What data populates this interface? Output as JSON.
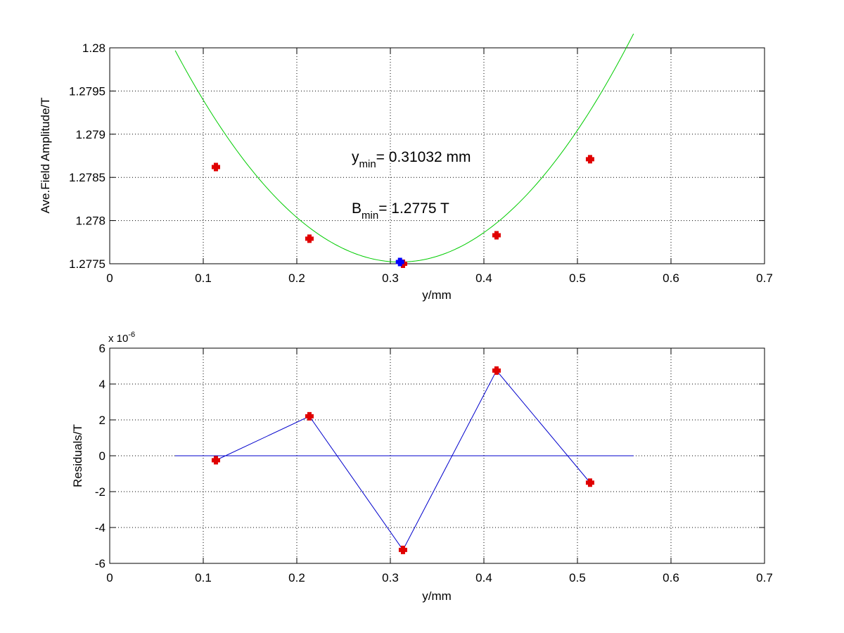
{
  "colors": {
    "fit_curve": "#00cc00",
    "measured_marker": "#e00000",
    "minimum_marker": "#0000ff",
    "residual_line": "#0000cc",
    "zero_line": "#0000cc",
    "grid": "#000000",
    "axes": "#000000"
  },
  "chart_data": [
    {
      "type": "scatter",
      "xlabel": "y/mm",
      "ylabel": "Ave.Field Amplitude/T",
      "xlim": [
        0,
        0.7
      ],
      "ylim": [
        1.2775,
        1.28
      ],
      "xticks": [
        "0",
        "0.1",
        "0.2",
        "0.3",
        "0.4",
        "0.5",
        "0.6",
        "0.7"
      ],
      "yticks": [
        "1.2775",
        "1.278",
        "1.2785",
        "1.279",
        "1.2795",
        "1.28"
      ],
      "grid": true,
      "series": [
        {
          "kind": "measured",
          "x": [
            0.1135,
            0.2135,
            0.3135,
            0.4135,
            0.5135
          ],
          "y": [
            1.27862,
            1.27779,
            1.2775,
            1.27783,
            1.27871
          ]
        },
        {
          "kind": "fit",
          "x_range": [
            0.07,
            0.56
          ],
          "vertex_x": 0.31032,
          "vertex_y": 1.27752,
          "curvature": 0.0424
        },
        {
          "kind": "minimum",
          "x": [
            0.31032
          ],
          "y": [
            1.27752
          ]
        }
      ],
      "annotations": [
        {
          "main": "y",
          "sub": "min",
          "rest": "= 0.31032 mm"
        },
        {
          "main": "B",
          "sub": "min",
          "rest": "= 1.2775 T"
        }
      ]
    },
    {
      "type": "line",
      "xlabel": "y/mm",
      "ylabel": "Residuals/T",
      "xlim": [
        0,
        0.7
      ],
      "ylim": [
        -6,
        6
      ],
      "y_multiplier": {
        "base": "x 10",
        "exponent": "-6"
      },
      "xticks": [
        "0",
        "0.1",
        "0.2",
        "0.3",
        "0.4",
        "0.5",
        "0.6",
        "0.7"
      ],
      "yticks": [
        "-6",
        "-4",
        "-2",
        "0",
        "2",
        "4",
        "6"
      ],
      "grid": true,
      "series": [
        {
          "kind": "residuals",
          "x": [
            0.1135,
            0.2135,
            0.3135,
            0.4135,
            0.5135
          ],
          "y": [
            -0.25,
            2.2,
            -5.25,
            4.75,
            -1.5
          ]
        },
        {
          "kind": "zero-line",
          "x": [
            0.07,
            0.56
          ],
          "y": [
            0,
            0
          ]
        }
      ]
    }
  ]
}
